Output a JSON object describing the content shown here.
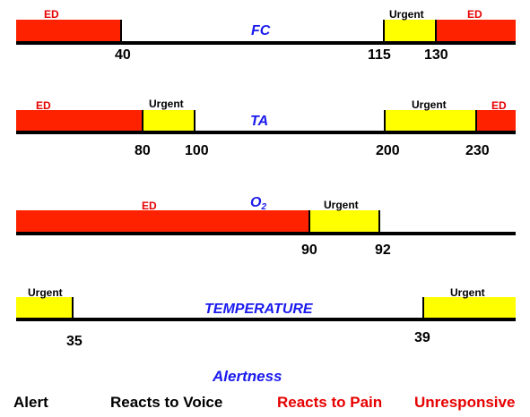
{
  "colors": {
    "ed": "#ff2200",
    "urgent": "#ffff00",
    "line": "#000000",
    "title": "#1a1aee",
    "label_red": "#e60000",
    "label_black": "#000000"
  },
  "scales": [
    {
      "name": "FC",
      "zones": [
        {
          "label": "ED",
          "kind": "ed"
        },
        {
          "label": "Urgent",
          "kind": "urgent"
        },
        {
          "label": "ED",
          "kind": "ed"
        }
      ],
      "ticks": [
        "40",
        "115",
        "130"
      ]
    },
    {
      "name": "TA",
      "zones": [
        {
          "label": "ED",
          "kind": "ed"
        },
        {
          "label": "Urgent",
          "kind": "urgent"
        },
        {
          "label": "Urgent",
          "kind": "urgent"
        },
        {
          "label": "ED",
          "kind": "ed"
        }
      ],
      "ticks": [
        "80",
        "100",
        "200",
        "230"
      ]
    },
    {
      "name": "O",
      "name_sub": "2",
      "zones": [
        {
          "label": "ED",
          "kind": "ed"
        },
        {
          "label": "Urgent",
          "kind": "urgent"
        }
      ],
      "ticks": [
        "90",
        "92"
      ]
    },
    {
      "name": "TEMPERATURE",
      "zones": [
        {
          "label": "Urgent",
          "kind": "urgent"
        },
        {
          "label": "Urgent",
          "kind": "urgent"
        }
      ],
      "ticks": [
        "35",
        "39"
      ]
    }
  ],
  "legend": {
    "title": "Alertness",
    "items": [
      {
        "label": "Alert",
        "color": "#000000"
      },
      {
        "label": "Reacts to Voice",
        "color": "#000000"
      },
      {
        "label": "Reacts to Pain",
        "color": "#e60000"
      },
      {
        "label": "Unresponsive",
        "color": "#e60000"
      }
    ]
  }
}
